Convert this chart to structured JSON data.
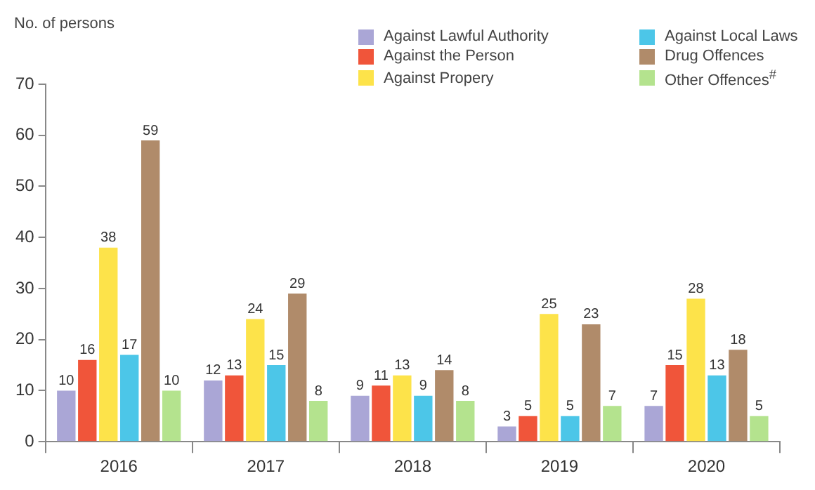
{
  "chart_data": {
    "type": "bar",
    "ylabel": "No. of persons",
    "categories": [
      "2016",
      "2017",
      "2018",
      "2019",
      "2020"
    ],
    "series": [
      {
        "name": "Against Lawful Authority",
        "color": "#aaa6d6",
        "values": [
          10,
          12,
          9,
          3,
          7
        ]
      },
      {
        "name": "Against the Person",
        "color": "#f0553a",
        "values": [
          16,
          13,
          11,
          5,
          15
        ]
      },
      {
        "name": "Against Propery",
        "color": "#fde34a",
        "values": [
          38,
          24,
          13,
          25,
          28
        ]
      },
      {
        "name": "Against Local Laws",
        "color": "#4cc6e8",
        "values": [
          17,
          15,
          9,
          5,
          13
        ]
      },
      {
        "name": "Drug Offences",
        "color": "#b08b6a",
        "values": [
          59,
          29,
          14,
          23,
          18
        ]
      },
      {
        "name": "Other Offences$^{#}$",
        "color": "#b4e38e",
        "values": [
          10,
          8,
          8,
          7,
          5
        ]
      }
    ],
    "ylim": [
      0,
      70
    ],
    "yticks": [
      0,
      10,
      20,
      30,
      40,
      50,
      60,
      70
    ],
    "grid": false,
    "legend": "top right",
    "data_labels": true
  }
}
